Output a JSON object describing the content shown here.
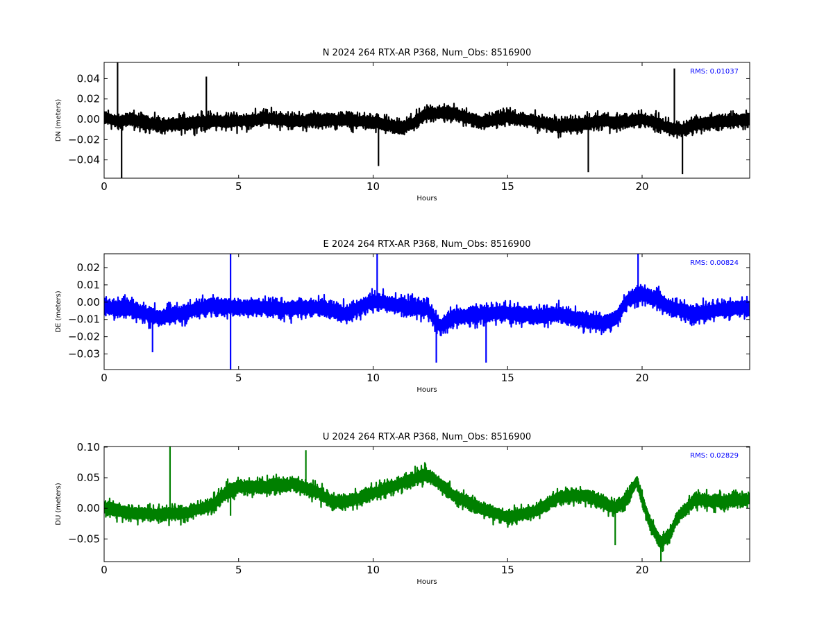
{
  "chart_data": [
    {
      "type": "line",
      "title": "N 2024 264 RTX-AR  P368, Num_Obs: 8516900",
      "xlabel": "Hours",
      "ylabel": "DN (meters)",
      "xlim": [
        0,
        24
      ],
      "ylim": [
        -0.058,
        0.056
      ],
      "xticks": [
        0,
        5,
        10,
        15,
        20
      ],
      "xtick_labels": [
        "0",
        "5",
        "10",
        "15",
        "20"
      ],
      "yticks": [
        0.04,
        0.02,
        0.0,
        -0.02,
        -0.04
      ],
      "ytick_labels": [
        "0.04",
        "0.02",
        "0.00",
        "−0.02",
        "−0.04"
      ],
      "grid": false,
      "annotation": "RMS:  0.01037",
      "annotation_color": "#0000ff",
      "series": [
        {
          "color": "#000000",
          "noise_amplitude": 0.0105,
          "x": [
            0,
            0.5,
            1,
            1.5,
            2,
            3,
            4,
            5,
            5.5,
            6,
            7,
            8,
            9,
            10,
            11,
            11.5,
            12,
            13,
            14,
            15,
            16,
            17,
            18,
            18.5,
            19,
            19.5,
            20,
            20.5,
            21,
            21.5,
            22,
            23,
            24
          ],
          "y": [
            0.002,
            -0.002,
            0.0,
            -0.003,
            -0.006,
            -0.004,
            -0.002,
            -0.002,
            -0.001,
            0.001,
            -0.002,
            -0.001,
            -0.001,
            -0.003,
            -0.008,
            -0.004,
            0.006,
            0.006,
            -0.003,
            0.002,
            -0.002,
            -0.007,
            -0.004,
            -0.001,
            -0.003,
            -0.002,
            0.0,
            -0.003,
            -0.009,
            -0.01,
            -0.005,
            -0.002,
            0.0
          ]
        }
      ],
      "spikes": [
        {
          "x": 0.5,
          "y": 0.056
        },
        {
          "x": 0.65,
          "y": -0.058
        },
        {
          "x": 3.8,
          "y": 0.042
        },
        {
          "x": 21.2,
          "y": 0.05
        },
        {
          "x": 21.5,
          "y": -0.054
        },
        {
          "x": 10.2,
          "y": -0.046
        },
        {
          "x": 18.0,
          "y": -0.052
        }
      ]
    },
    {
      "type": "line",
      "title": "E 2024 264 RTX-AR  P368, Num_Obs: 8516900",
      "xlabel": "Hours",
      "ylabel": "DE (meters)",
      "xlim": [
        0,
        24
      ],
      "ylim": [
        -0.039,
        0.028
      ],
      "xticks": [
        0,
        5,
        10,
        15,
        20
      ],
      "xtick_labels": [
        "0",
        "5",
        "10",
        "15",
        "20"
      ],
      "yticks": [
        0.02,
        0.01,
        0.0,
        -0.01,
        -0.02,
        -0.03
      ],
      "ytick_labels": [
        "0.02",
        "0.01",
        "0.00",
        "−0.01",
        "−0.02",
        "−0.03"
      ],
      "grid": false,
      "annotation": "RMS:  0.00824",
      "annotation_color": "#0000ff",
      "series": [
        {
          "color": "#0000ff",
          "noise_amplitude": 0.0075,
          "x": [
            0,
            1,
            2,
            3,
            4,
            5,
            6,
            7,
            8,
            9,
            10,
            11,
            12,
            12.5,
            13,
            14,
            15,
            16,
            17,
            18,
            18.5,
            19,
            19.5,
            20,
            20.5,
            21,
            22,
            23,
            24
          ],
          "y": [
            -0.003,
            -0.004,
            -0.009,
            -0.006,
            -0.002,
            -0.003,
            -0.003,
            -0.004,
            -0.003,
            -0.007,
            0.001,
            -0.002,
            -0.004,
            -0.014,
            -0.009,
            -0.007,
            -0.006,
            -0.008,
            -0.007,
            -0.011,
            -0.012,
            -0.01,
            0.002,
            0.005,
            0.002,
            -0.003,
            -0.007,
            -0.004,
            -0.003
          ]
        }
      ],
      "spikes": [
        {
          "x": 4.7,
          "y": -0.039
        },
        {
          "x": 4.7,
          "y": 0.028
        },
        {
          "x": 10.15,
          "y": 0.028
        },
        {
          "x": 19.85,
          "y": 0.028
        },
        {
          "x": 12.35,
          "y": -0.035
        },
        {
          "x": 14.2,
          "y": -0.035
        },
        {
          "x": 1.8,
          "y": -0.029
        }
      ]
    },
    {
      "type": "line",
      "title": "U 2024 264 RTX-AR  P368, Num_Obs: 8516900",
      "xlabel": "Hours",
      "ylabel": "DU (meters)",
      "xlim": [
        0,
        24
      ],
      "ylim": [
        -0.087,
        0.101
      ],
      "xticks": [
        0,
        5,
        10,
        15,
        20
      ],
      "xtick_labels": [
        "0",
        "5",
        "10",
        "15",
        "20"
      ],
      "yticks": [
        0.1,
        0.05,
        0.0,
        -0.05
      ],
      "ytick_labels": [
        "0.10",
        "0.05",
        "0.00",
        "−0.05"
      ],
      "grid": false,
      "annotation": "RMS:  0.02829",
      "annotation_color": "#0000ff",
      "series": [
        {
          "color": "#008000",
          "noise_amplitude": 0.018,
          "x": [
            0,
            1,
            2,
            3,
            4,
            4.5,
            5,
            6,
            7,
            8,
            8.5,
            9,
            10,
            11,
            12,
            12.5,
            13,
            14,
            15,
            16,
            17,
            18,
            19,
            19.5,
            19.8,
            20,
            20.3,
            20.7,
            21,
            21.3,
            22,
            23,
            24
          ],
          "y": [
            0.0,
            -0.008,
            -0.01,
            -0.008,
            0.005,
            0.025,
            0.035,
            0.035,
            0.04,
            0.025,
            0.01,
            0.01,
            0.025,
            0.04,
            0.055,
            0.04,
            0.02,
            0.0,
            -0.015,
            -0.005,
            0.02,
            0.02,
            0.0,
            0.02,
            0.045,
            0.015,
            -0.025,
            -0.055,
            -0.045,
            -0.015,
            0.015,
            0.01,
            0.015
          ]
        }
      ],
      "spikes": [
        {
          "x": 2.45,
          "y": 0.101
        },
        {
          "x": 7.5,
          "y": 0.095
        },
        {
          "x": 4.7,
          "y": -0.012
        },
        {
          "x": 20.7,
          "y": -0.087
        },
        {
          "x": 19.0,
          "y": -0.06
        }
      ]
    }
  ]
}
